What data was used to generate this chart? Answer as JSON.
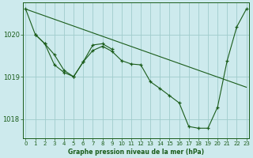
{
  "title": "Graphe pression niveau de la mer (hPa)",
  "bg_color": "#cdeaed",
  "line_color": "#1a5c1a",
  "grid_color": "#a0cccc",
  "ylim": [
    1017.55,
    1020.75
  ],
  "xlim": [
    -0.3,
    23.3
  ],
  "yticks": [
    1018,
    1019,
    1020
  ],
  "xtick_labels": [
    "0",
    "1",
    "2",
    "3",
    "4",
    "5",
    "6",
    "7",
    "8",
    "9",
    "10",
    "11",
    "12",
    "13",
    "14",
    "15",
    "16",
    "17",
    "18",
    "19",
    "20",
    "21",
    "22",
    "23"
  ],
  "xticks": [
    0,
    1,
    2,
    3,
    4,
    5,
    6,
    7,
    8,
    9,
    10,
    11,
    12,
    13,
    14,
    15,
    16,
    17,
    18,
    19,
    20,
    21,
    22,
    23
  ],
  "series": [
    {
      "x": [
        0,
        1,
        2,
        3,
        4,
        5,
        6,
        7,
        8,
        9,
        10,
        11,
        12,
        13,
        14,
        15,
        16,
        17,
        18,
        19,
        20,
        21,
        22,
        23
      ],
      "y": [
        1020.6,
        1020.0,
        1019.78,
        1019.52,
        1019.15,
        1019.0,
        1019.35,
        1019.62,
        1019.72,
        1019.6,
        1019.38,
        1019.3,
        1019.28,
        1018.88,
        1018.72,
        1018.55,
        1018.38,
        1017.82,
        1017.78,
        1017.78,
        1018.28,
        1019.38,
        1020.18,
        1020.6
      ],
      "marker": true
    },
    {
      "x": [
        1,
        2,
        3,
        4,
        5,
        6,
        7,
        8,
        9
      ],
      "y": [
        1020.0,
        1019.78,
        1019.28,
        1019.1,
        1019.0,
        1019.35,
        1019.75,
        1019.78,
        1019.65
      ],
      "marker": true
    },
    {
      "x": [
        0,
        23
      ],
      "y": [
        1020.6,
        1018.75
      ],
      "marker": false
    }
  ]
}
